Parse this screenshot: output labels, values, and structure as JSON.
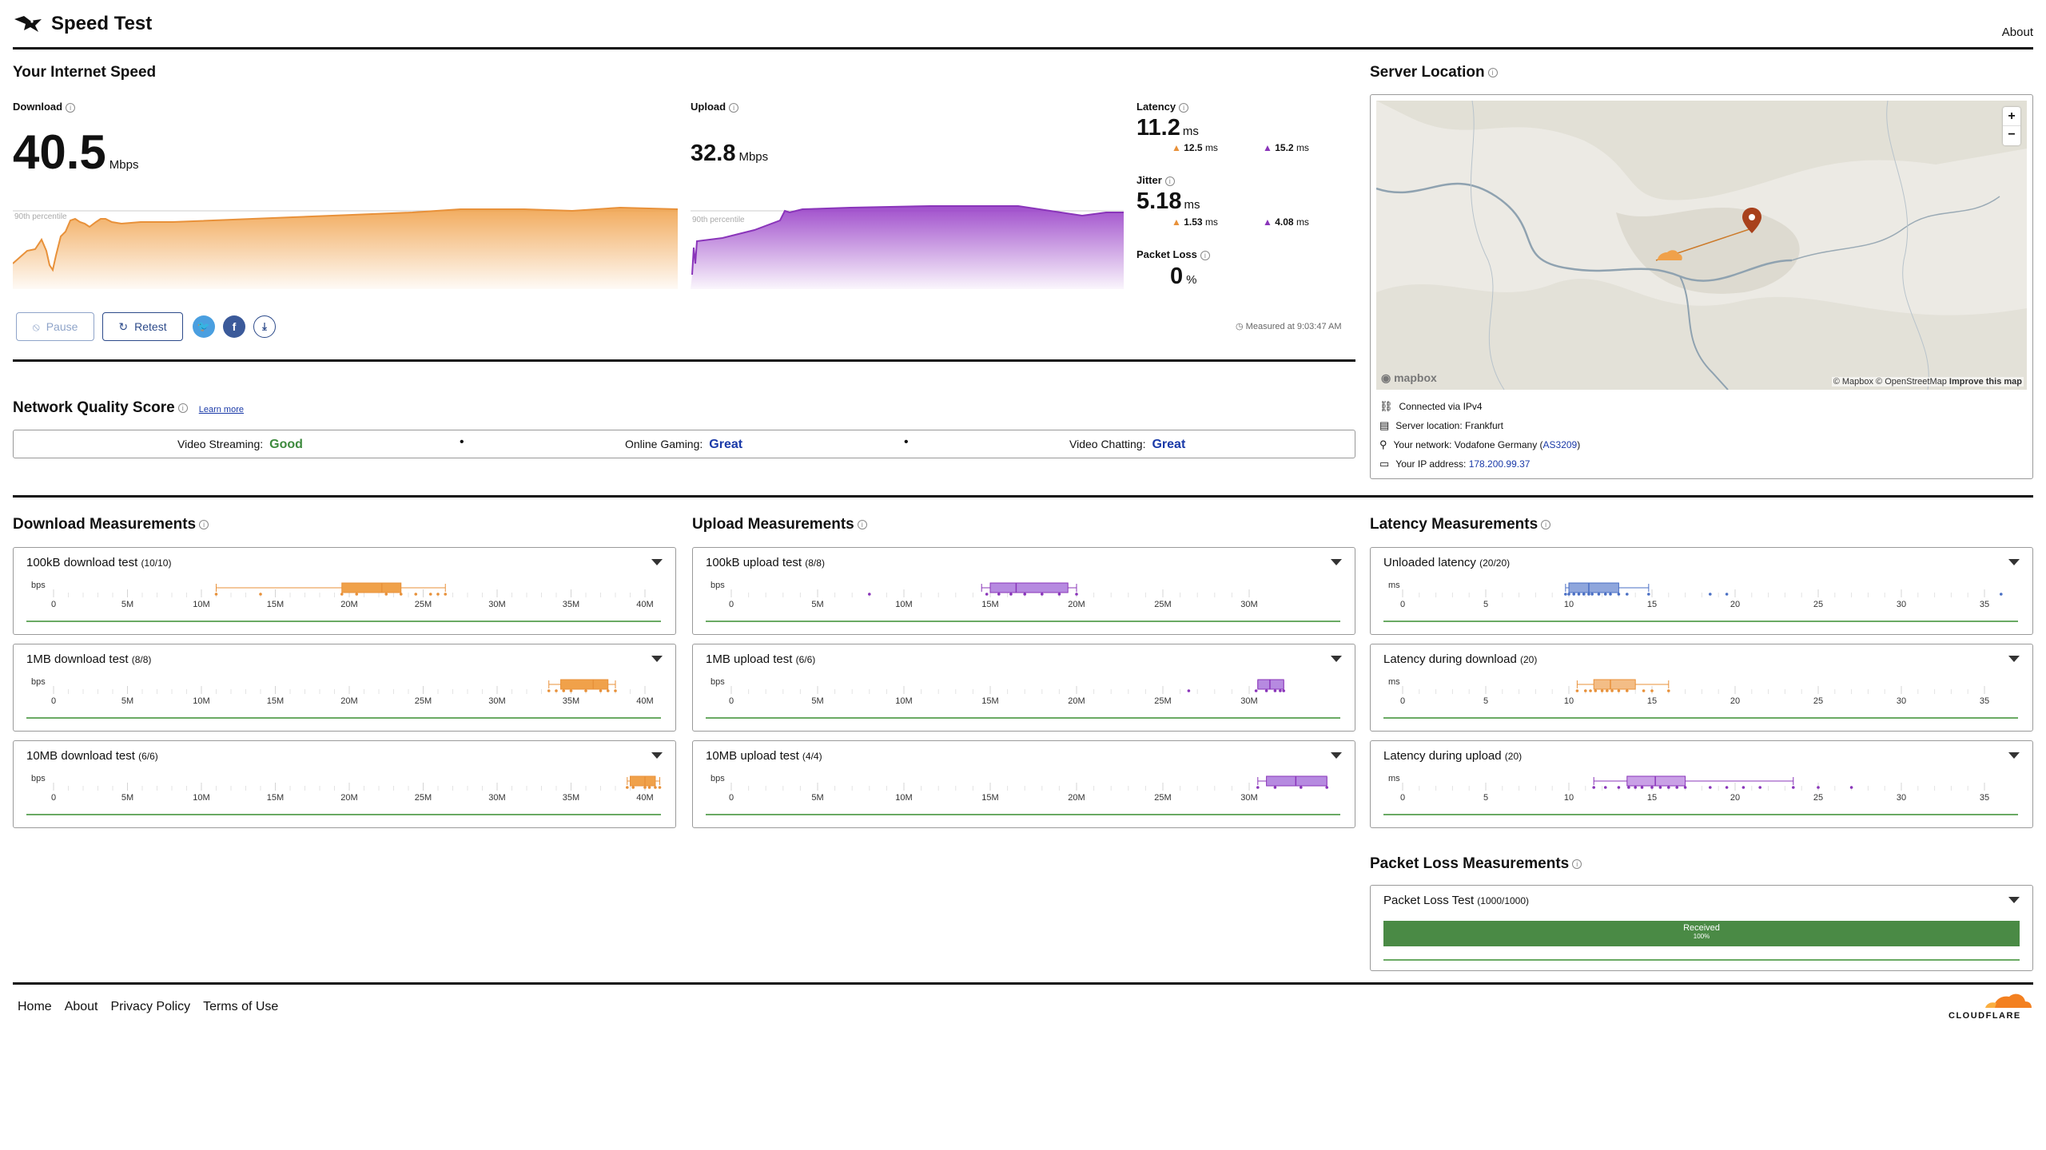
{
  "header": {
    "title": "Speed Test",
    "about": "About"
  },
  "speed": {
    "section_title": "Your Internet Speed",
    "download": {
      "label": "Download",
      "value": "40.5",
      "unit": "Mbps",
      "percentile": "90th percentile",
      "color": "#f0a14a"
    },
    "upload": {
      "label": "Upload",
      "value": "32.8",
      "unit": "Mbps",
      "percentile": "90th percentile",
      "color": "#9b45c9"
    },
    "latency": {
      "label": "Latency",
      "value": "11.2",
      "unit": "ms",
      "down": "12.5",
      "down_unit": "ms",
      "up": "15.2",
      "up_unit": "ms"
    },
    "jitter": {
      "label": "Jitter",
      "value": "5.18",
      "unit": "ms",
      "down": "1.53",
      "down_unit": "ms",
      "up": "4.08",
      "up_unit": "ms"
    },
    "packet_loss": {
      "label": "Packet Loss",
      "value": "0",
      "unit": "%"
    },
    "measured_at": "Measured at 9:03:47 AM",
    "pause_label": "Pause",
    "retest_label": "Retest"
  },
  "server": {
    "title": "Server Location",
    "map_attrib": "© Mapbox © OpenStreetMap",
    "improve": "Improve this map",
    "mapbox": "mapbox",
    "rows": [
      {
        "icon": "network-icon",
        "text": "Connected via IPv4"
      },
      {
        "icon": "server-icon",
        "text": "Server location: Frankfurt"
      },
      {
        "icon": "pin-icon",
        "text": "Your network: Vodafone Germany (",
        "link": "AS3209",
        "tail": ")"
      },
      {
        "icon": "id-card-icon",
        "text": "Your IP address: ",
        "link": "178.200.99.37"
      }
    ]
  },
  "nqs": {
    "title": "Network Quality Score",
    "learn_more": "Learn more",
    "items": [
      {
        "label": "Video Streaming:",
        "value": "Good",
        "color": "#3d8a3d"
      },
      {
        "label": "Online Gaming:",
        "value": "Great",
        "color": "#1a3aa8"
      },
      {
        "label": "Video Chatting:",
        "value": "Great",
        "color": "#1a3aa8"
      }
    ]
  },
  "download_meas": {
    "title": "Download Measurements",
    "tests": [
      {
        "name": "100kB download test",
        "count": "(10/10)"
      },
      {
        "name": "1MB download test",
        "count": "(8/8)"
      },
      {
        "name": "10MB download test",
        "count": "(6/6)"
      }
    ]
  },
  "upload_meas": {
    "title": "Upload Measurements",
    "tests": [
      {
        "name": "100kB upload test",
        "count": "(8/8)"
      },
      {
        "name": "1MB upload test",
        "count": "(6/6)"
      },
      {
        "name": "10MB upload test",
        "count": "(4/4)"
      }
    ]
  },
  "latency_meas": {
    "title": "Latency Measurements",
    "tests": [
      {
        "name": "Unloaded latency",
        "count": "(20/20)"
      },
      {
        "name": "Latency during download",
        "count": "(20)"
      },
      {
        "name": "Latency during upload",
        "count": "(20)"
      }
    ]
  },
  "packet_meas": {
    "title": "Packet Loss Measurements",
    "test_name": "Packet Loss Test",
    "test_count": "(1000/1000)",
    "bar_label": "Received",
    "bar_pct": "100%",
    "received_fraction": 1.0
  },
  "axes": {
    "bps_ticks": [
      "0",
      "5M",
      "10M",
      "15M",
      "20M",
      "25M",
      "30M",
      "35M",
      "40M"
    ],
    "bps_unit": "bps",
    "upload_ticks": [
      "0",
      "5M",
      "10M",
      "15M",
      "20M",
      "25M",
      "30M"
    ],
    "ms_ticks": [
      "0",
      "5",
      "10",
      "15",
      "20",
      "25",
      "30",
      "35"
    ],
    "ms_unit": "ms"
  },
  "chart_data": [
    {
      "type": "box",
      "name": "100kB download test",
      "unit": "bps",
      "xlim": [
        0,
        40000000
      ],
      "whisker": [
        11000000,
        26500000
      ],
      "box": [
        19500000,
        23500000
      ],
      "median": 22200000,
      "points": [
        11000000,
        14000000,
        19500000,
        20500000,
        22500000,
        23500000,
        24500000,
        25500000,
        26000000,
        26500000
      ]
    },
    {
      "type": "box",
      "name": "1MB download test",
      "unit": "bps",
      "xlim": [
        0,
        40000000
      ],
      "whisker": [
        33500000,
        38000000
      ],
      "box": [
        34300000,
        37500000
      ],
      "median": 36500000,
      "points": [
        33500000,
        34000000,
        34500000,
        35000000,
        36000000,
        37000000,
        37500000,
        38000000
      ]
    },
    {
      "type": "box",
      "name": "10MB download test",
      "unit": "bps",
      "xlim": [
        0,
        40000000
      ],
      "whisker": [
        38800000,
        41000000
      ],
      "box": [
        39000000,
        40700000
      ],
      "median": 40000000,
      "points": [
        38800000,
        39200000,
        40000000,
        40300000,
        40700000,
        41000000
      ]
    },
    {
      "type": "box",
      "name": "100kB upload test",
      "unit": "bps",
      "xlim": [
        0,
        33000000
      ],
      "whisker": [
        14500000,
        20000000
      ],
      "box": [
        15000000,
        19500000
      ],
      "median": 16500000,
      "points": [
        8000000,
        14800000,
        15500000,
        16200000,
        17000000,
        18000000,
        19000000,
        20000000
      ]
    },
    {
      "type": "box",
      "name": "1MB upload test",
      "unit": "bps",
      "xlim": [
        0,
        33000000
      ],
      "whisker": [
        30500000,
        32000000
      ],
      "box": [
        30500000,
        32000000
      ],
      "median": 31200000,
      "points": [
        26500000,
        30400000,
        31000000,
        31500000,
        31800000,
        32000000
      ]
    },
    {
      "type": "box",
      "name": "10MB upload test",
      "unit": "bps",
      "xlim": [
        0,
        33000000
      ],
      "whisker": [
        30500000,
        34500000
      ],
      "box": [
        31000000,
        34500000
      ],
      "median": 32700000,
      "points": [
        30500000,
        31500000,
        33000000,
        34500000
      ]
    },
    {
      "type": "box",
      "name": "Unloaded latency",
      "unit": "ms",
      "xlim": [
        0,
        36
      ],
      "whisker": [
        9.8,
        14.8
      ],
      "box": [
        10,
        13
      ],
      "median": 11.2,
      "points": [
        9.8,
        10,
        10.3,
        10.6,
        10.9,
        11.2,
        11.4,
        11.8,
        12.2,
        12.5,
        13,
        13.5,
        14.8,
        18.5,
        19.5,
        36
      ]
    },
    {
      "type": "box",
      "name": "Latency during download",
      "unit": "ms",
      "xlim": [
        0,
        36
      ],
      "whisker": [
        10.5,
        16
      ],
      "box": [
        11.5,
        14
      ],
      "median": 12.5,
      "points": [
        10.5,
        11,
        11.3,
        11.6,
        12,
        12.3,
        12.6,
        13,
        13.5,
        14.5,
        15,
        16
      ]
    },
    {
      "type": "box",
      "name": "Latency during upload",
      "unit": "ms",
      "xlim": [
        0,
        36
      ],
      "whisker": [
        11.5,
        23.5
      ],
      "box": [
        13.5,
        17
      ],
      "median": 15.2,
      "points": [
        11.5,
        12.2,
        13,
        13.6,
        14,
        14.4,
        15,
        15.5,
        16,
        16.5,
        17,
        18.5,
        19.5,
        20.5,
        21.5,
        23.5,
        25,
        27
      ]
    }
  ]
}
